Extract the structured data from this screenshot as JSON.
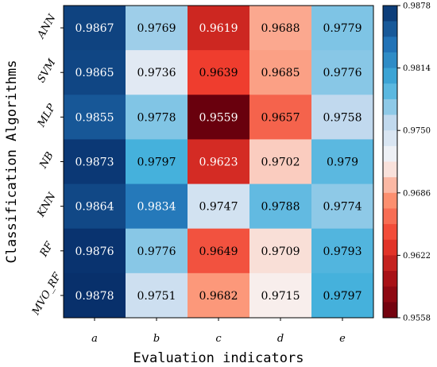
{
  "chart_data": {
    "type": "heatmap",
    "title": "",
    "xlabel": "Evaluation indicators",
    "ylabel": "Classification Algorithms",
    "columns": [
      "a",
      "b",
      "c",
      "d",
      "e"
    ],
    "rows": [
      "ANN",
      "SVM",
      "MLP",
      "NB",
      "KNN",
      "RF",
      "MVO_RF"
    ],
    "values": [
      [
        "0.9867",
        "0.9769",
        "0.9619",
        "0.9688",
        "0.9779"
      ],
      [
        "0.9865",
        "0.9736",
        "0.9639",
        "0.9685",
        "0.9776"
      ],
      [
        "0.9855",
        "0.9778",
        "0.9559",
        "0.9657",
        "0.9758"
      ],
      [
        "0.9873",
        "0.9797",
        "0.9623",
        "0.9702",
        "0.979"
      ],
      [
        "0.9864",
        "0.9834",
        "0.9747",
        "0.9788",
        "0.9774"
      ],
      [
        "0.9876",
        "0.9776",
        "0.9649",
        "0.9709",
        "0.9793"
      ],
      [
        "0.9878",
        "0.9751",
        "0.9682",
        "0.9715",
        "0.9797"
      ]
    ],
    "colorbar": {
      "min": 0.9558,
      "max": 0.9878,
      "ticks": [
        "0.9878",
        "0.9814",
        "0.9750",
        "0.9686",
        "0.9622",
        "0.9558"
      ],
      "colormap": "RdBu (red = low, blue = high)"
    }
  }
}
